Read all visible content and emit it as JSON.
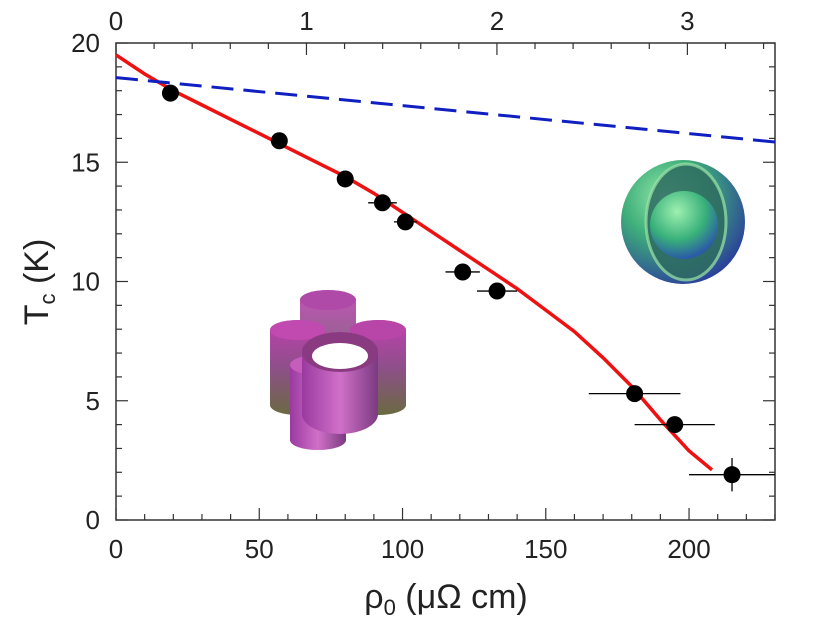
{
  "chart_data": {
    "type": "scatter",
    "title": "",
    "xlabel": {
      "symbol": "ρ",
      "subscript": "0",
      "units": " (μΩ cm)"
    },
    "ylabel": {
      "symbol": "T",
      "subscript": "c",
      "units": " (K)"
    },
    "xlim": [
      0,
      230
    ],
    "ylim": [
      0,
      20
    ],
    "x_ticks": [
      "0",
      "50",
      "100",
      "150",
      "200"
    ],
    "y_ticks": [
      "0",
      "5",
      "10",
      "15",
      "20"
    ],
    "top_axis": {
      "lim": [
        0,
        3.46
      ],
      "ticks": [
        "0",
        "1",
        "2",
        "3"
      ]
    },
    "grid": false,
    "series": [
      {
        "kind": "points-with-xerror",
        "color": "#000000",
        "points": [
          {
            "x": 19,
            "y": 17.9,
            "xerr": 0,
            "yerr": 0
          },
          {
            "x": 57,
            "y": 15.9,
            "xerr": 0,
            "yerr": 0
          },
          {
            "x": 80,
            "y": 14.3,
            "xerr": 0,
            "yerr": 0
          },
          {
            "x": 93,
            "y": 13.3,
            "xerr": 5,
            "yerr": 0
          },
          {
            "x": 101,
            "y": 12.5,
            "xerr": 4,
            "yerr": 0
          },
          {
            "x": 121,
            "y": 10.4,
            "xerr": 6,
            "yerr": 0
          },
          {
            "x": 133,
            "y": 9.6,
            "xerr": 7,
            "yerr": 0
          },
          {
            "x": 181,
            "y": 5.3,
            "xerr": 16,
            "yerr": 0
          },
          {
            "x": 195,
            "y": 4.0,
            "xerr": 14,
            "yerr": 0
          },
          {
            "x": 215,
            "y": 1.9,
            "xerr": 15,
            "yerr": 0.7
          }
        ]
      },
      {
        "kind": "line",
        "color": "#ee1111",
        "style": "solid",
        "points": [
          [
            0,
            19.5
          ],
          [
            10,
            18.7
          ],
          [
            20,
            18.0
          ],
          [
            30,
            17.4
          ],
          [
            40,
            16.8
          ],
          [
            50,
            16.2
          ],
          [
            60,
            15.6
          ],
          [
            70,
            15.0
          ],
          [
            80,
            14.4
          ],
          [
            90,
            13.7
          ],
          [
            100,
            12.9
          ],
          [
            110,
            12.1
          ],
          [
            120,
            11.3
          ],
          [
            130,
            10.5
          ],
          [
            140,
            9.7
          ],
          [
            150,
            8.8
          ],
          [
            160,
            7.9
          ],
          [
            170,
            6.8
          ],
          [
            180,
            5.6
          ],
          [
            190,
            4.2
          ],
          [
            200,
            2.9
          ],
          [
            208,
            2.1
          ]
        ]
      },
      {
        "kind": "line",
        "color": "#1020c0",
        "style": "dashed",
        "points": [
          [
            0,
            18.55
          ],
          [
            230,
            15.85
          ]
        ]
      }
    ],
    "insets": [
      {
        "name": "spherical-fermi-surface",
        "colors": [
          "#5fd39a",
          "#2a8a5a",
          "#3a48b0"
        ]
      },
      {
        "name": "cylindrical-fermi-surface",
        "colors": [
          "#b040a0",
          "#8a6a40",
          "#6a2a7a"
        ]
      }
    ]
  }
}
